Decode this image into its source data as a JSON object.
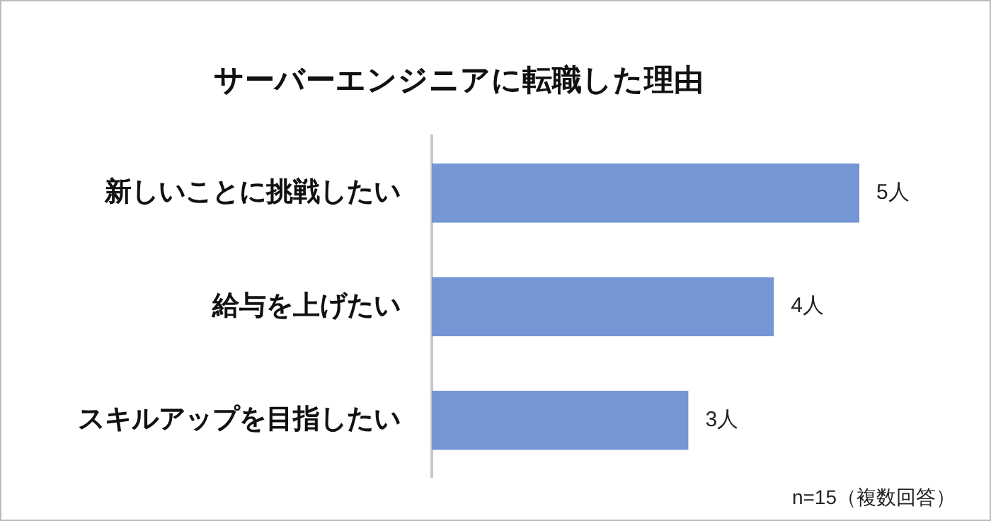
{
  "chart_data": {
    "type": "bar",
    "orientation": "horizontal",
    "title": "サーバーエンジニアに転職した理由",
    "categories": [
      "新しいことに挑戦したい",
      "給与を上げたい",
      "スキルアップを目指したい"
    ],
    "values": [
      5,
      4,
      3
    ],
    "color": "#7596d4",
    "value_labels": [
      "5人",
      "4人",
      "3人"
    ],
    "annotations": [
      "n=15（複数回答）"
    ]
  }
}
